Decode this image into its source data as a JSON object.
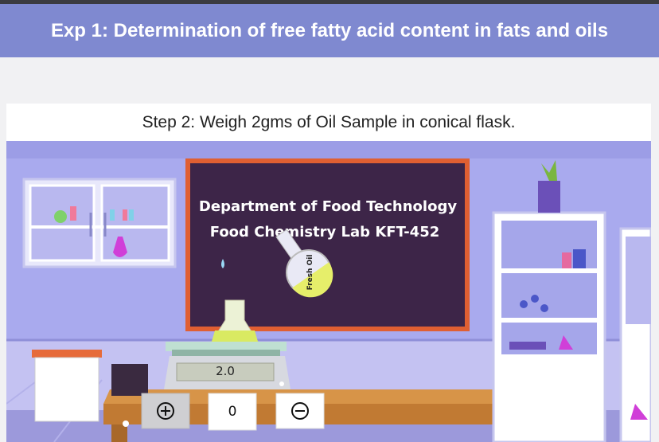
{
  "header": {
    "title": "Exp 1: Determination of free fatty acid content in fats and oils"
  },
  "step": {
    "instruction": "Step 2: Weigh 2gms of Oil Sample in conical flask."
  },
  "scene": {
    "board_lines": [
      "Department of Food Technology",
      "Food Chemistry Lab  KFT-452"
    ],
    "bottle_label": "Fresh Oil",
    "scale_display": "2.0"
  },
  "controls": {
    "count": "0"
  }
}
